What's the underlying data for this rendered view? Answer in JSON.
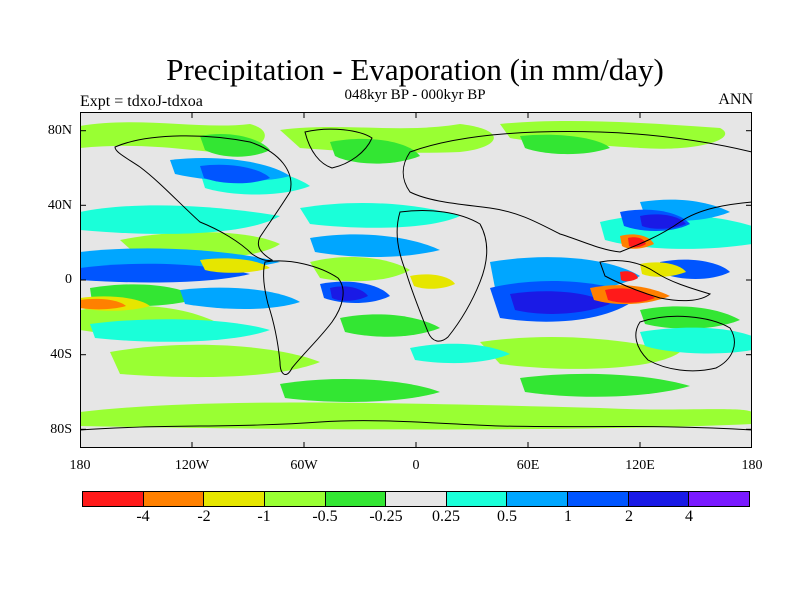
{
  "title": "Precipitation - Evaporation (in mm/day)",
  "subtitle": "048kyr BP - 000kyr BP",
  "left_label": "Expt = tdxoJ-tdxoa",
  "right_label": "ANN",
  "lat_labels": [
    "80N",
    "40N",
    "0",
    "40S",
    "80S"
  ],
  "lon_labels": [
    "180",
    "120W",
    "60W",
    "0",
    "60E",
    "120E",
    "180"
  ],
  "colorbar": {
    "colors": [
      "#ff1a1a",
      "#ff8000",
      "#e6e600",
      "#99ff33",
      "#33e633",
      "#e6e6e6",
      "#1affd9",
      "#00a6ff",
      "#0055ff",
      "#1a1ae6",
      "#7a1aff"
    ],
    "labels": [
      "-4",
      "-2",
      "-1",
      "-0.5",
      "-0.25",
      "0.25",
      "0.5",
      "1",
      "2",
      "4"
    ]
  },
  "map": {
    "background": "#e6e6e6",
    "field_colors": {
      "light_green": "#99ff33",
      "green": "#33e633",
      "cyan": "#1affd9",
      "sky": "#00a6ff",
      "blue": "#0055ff",
      "dark_blue": "#1a1ae6",
      "yellow": "#e6e600",
      "orange": "#ff8000",
      "red": "#ff1a1a",
      "violet": "#7a1aff"
    }
  }
}
